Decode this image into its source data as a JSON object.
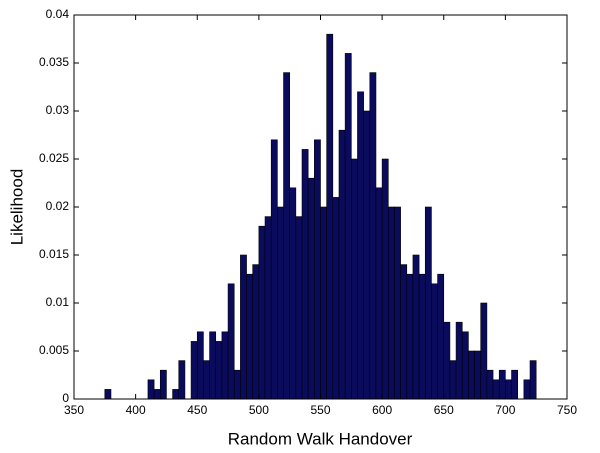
{
  "chart_data": {
    "type": "histogram",
    "xlabel": "Random Walk Handover",
    "ylabel": "Likelihood",
    "bins": [
      375,
      380,
      385,
      390,
      395,
      400,
      405,
      410,
      415,
      420,
      425,
      430,
      435,
      440,
      445,
      450,
      455,
      460,
      465,
      470,
      475,
      480,
      485,
      490,
      495,
      500,
      505,
      510,
      515,
      520,
      525,
      530,
      535,
      540,
      545,
      550,
      555,
      560,
      565,
      570,
      575,
      580,
      585,
      590,
      595,
      600,
      605,
      610,
      615,
      620,
      625,
      630,
      635,
      640,
      645,
      650,
      655,
      660,
      665,
      670,
      675,
      680,
      685,
      690,
      695,
      700,
      705,
      710,
      715,
      720,
      725
    ],
    "values": [
      0.001,
      0,
      0,
      0,
      0,
      0,
      0,
      0.002,
      0.001,
      0.003,
      0,
      0.001,
      0.004,
      0,
      0.006,
      0.007,
      0.004,
      0.007,
      0.006,
      0.007,
      0.012,
      0.003,
      0.015,
      0.013,
      0.014,
      0.018,
      0.019,
      0.027,
      0.02,
      0.034,
      0.022,
      0.019,
      0.026,
      0.023,
      0.027,
      0.02,
      0.038,
      0.021,
      0.028,
      0.036,
      0.025,
      0.032,
      0.03,
      0.034,
      0.022,
      0.025,
      0.02,
      0.02,
      0.014,
      0.013,
      0.015,
      0.013,
      0.02,
      0.012,
      0.013,
      0.008,
      0.004,
      0.008,
      0.007,
      0.005,
      0.005,
      0.01,
      0.003,
      0.002,
      0.003,
      0.002,
      0.003,
      0,
      0.002,
      0.004
    ],
    "color": "#0b0b5e",
    "edgecolor": "#000000",
    "xlim": [
      350,
      750
    ],
    "xticks": [
      350,
      400,
      450,
      500,
      550,
      600,
      650,
      700,
      750
    ],
    "ylim": [
      0,
      0.04
    ],
    "yticks": [
      0,
      0.005,
      0.01,
      0.015,
      0.02,
      0.025,
      0.03,
      0.035,
      0.04
    ],
    "grid": false
  }
}
